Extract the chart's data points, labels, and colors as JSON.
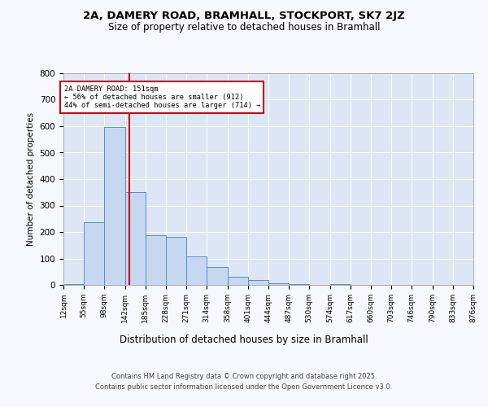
{
  "title1": "2A, DAMERY ROAD, BRAMHALL, STOCKPORT, SK7 2JZ",
  "title2": "Size of property relative to detached houses in Bramhall",
  "xlabel": "Distribution of detached houses by size in Bramhall",
  "ylabel": "Number of detached properties",
  "bar_color": "#c5d8f0",
  "bar_edge_color": "#5b8cc8",
  "background_color": "#dce6f5",
  "grid_color": "#ffffff",
  "annotation_box_color": "#cc0000",
  "vline_color": "#cc0000",
  "vline_x": 151,
  "annotation_text": "2A DAMERY ROAD: 151sqm\n← 56% of detached houses are smaller (912)\n44% of semi-detached houses are larger (714) →",
  "footer1": "Contains HM Land Registry data © Crown copyright and database right 2025.",
  "footer2": "Contains public sector information licensed under the Open Government Licence v3.0.",
  "bins": [
    12,
    55,
    98,
    142,
    185,
    228,
    271,
    314,
    358,
    401,
    444,
    487,
    530,
    574,
    617,
    660,
    703,
    746,
    790,
    833,
    876
  ],
  "counts": [
    2,
    238,
    598,
    352,
    188,
    182,
    107,
    68,
    30,
    20,
    7,
    2,
    0,
    2,
    0,
    0,
    0,
    0,
    0,
    0
  ],
  "ylim": [
    0,
    800
  ],
  "yticks": [
    0,
    100,
    200,
    300,
    400,
    500,
    600,
    700,
    800
  ],
  "figsize": [
    6.0,
    5.0
  ],
  "dpi": 100,
  "fig_bg": "#f5f8ff"
}
